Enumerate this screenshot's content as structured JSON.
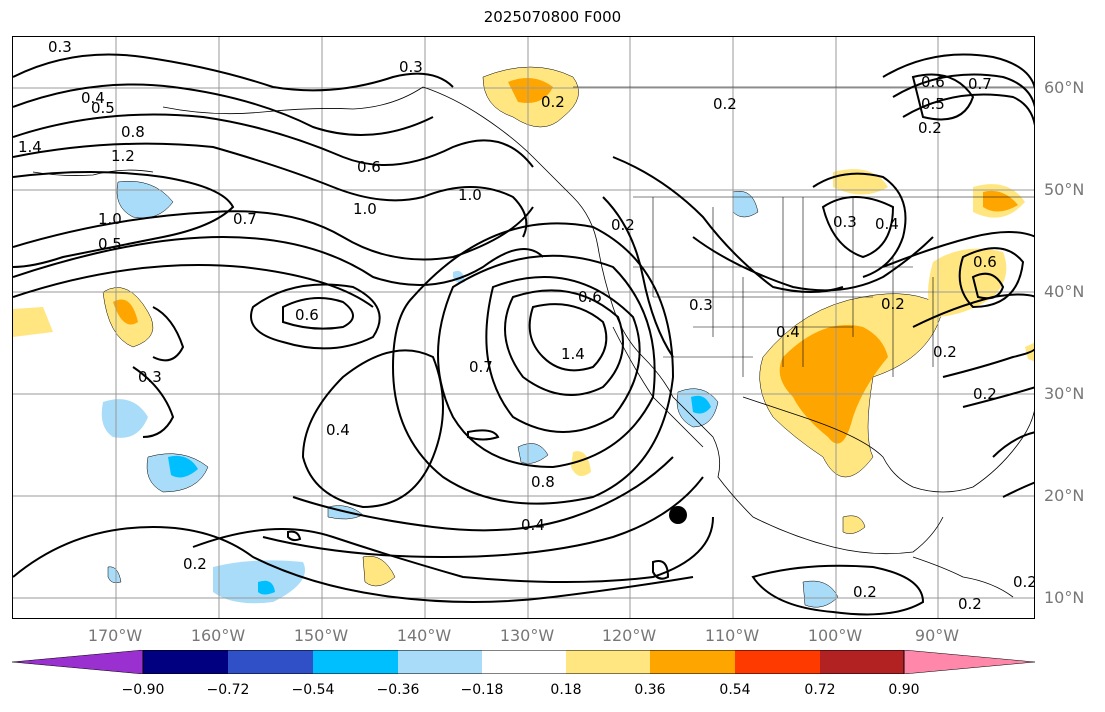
{
  "title": "2025070800 F000",
  "lat_labels": [
    "60°N",
    "50°N",
    "40°N",
    "30°N",
    "20°N",
    "10°N"
  ],
  "lon_labels": [
    "170°W",
    "160°W",
    "150°W",
    "140°W",
    "130°W",
    "120°W",
    "110°W",
    "100°W",
    "90°W"
  ],
  "colorbar": {
    "ticks": [
      "−0.90",
      "−0.72",
      "−0.54",
      "−0.36",
      "−0.18",
      "0.18",
      "0.36",
      "0.54",
      "0.72",
      "0.90"
    ],
    "colors": [
      "#9b30d0",
      "#000080",
      "#3050c8",
      "#00bfff",
      "#a8dcf8",
      "#ffffff",
      "#ffe680",
      "#ffa500",
      "#ff3a00",
      "#b22222",
      "#ff88aa"
    ]
  },
  "contour_labels": [
    "0.3",
    "0.4",
    "0.5",
    "0.8",
    "1.4",
    "1.2",
    "0.6",
    "1.0",
    "0.3",
    "0.2",
    "0.2",
    "1.0",
    "0.2",
    "0.7",
    "0.6",
    "1.0",
    "0.5",
    "0.6",
    "0.3",
    "1.4",
    "0.3",
    "0.7",
    "0.4",
    "0.8",
    "0.4",
    "0.2",
    "0.4",
    "0.3",
    "0.4",
    "0.2",
    "0.2",
    "0.2",
    "0.2",
    "0.2",
    "0.7",
    "0.6",
    "0.5",
    "0.2",
    "0.2",
    "0.6"
  ],
  "map_style": {
    "shade_positive_low": "#ffe680",
    "shade_positive_mid": "#ffa500",
    "shade_negative_low": "#a8dcf8",
    "shade_negative_mid": "#00bfff",
    "contour_color": "#000000",
    "grid_color": "#999999",
    "label_color": "#777777"
  }
}
